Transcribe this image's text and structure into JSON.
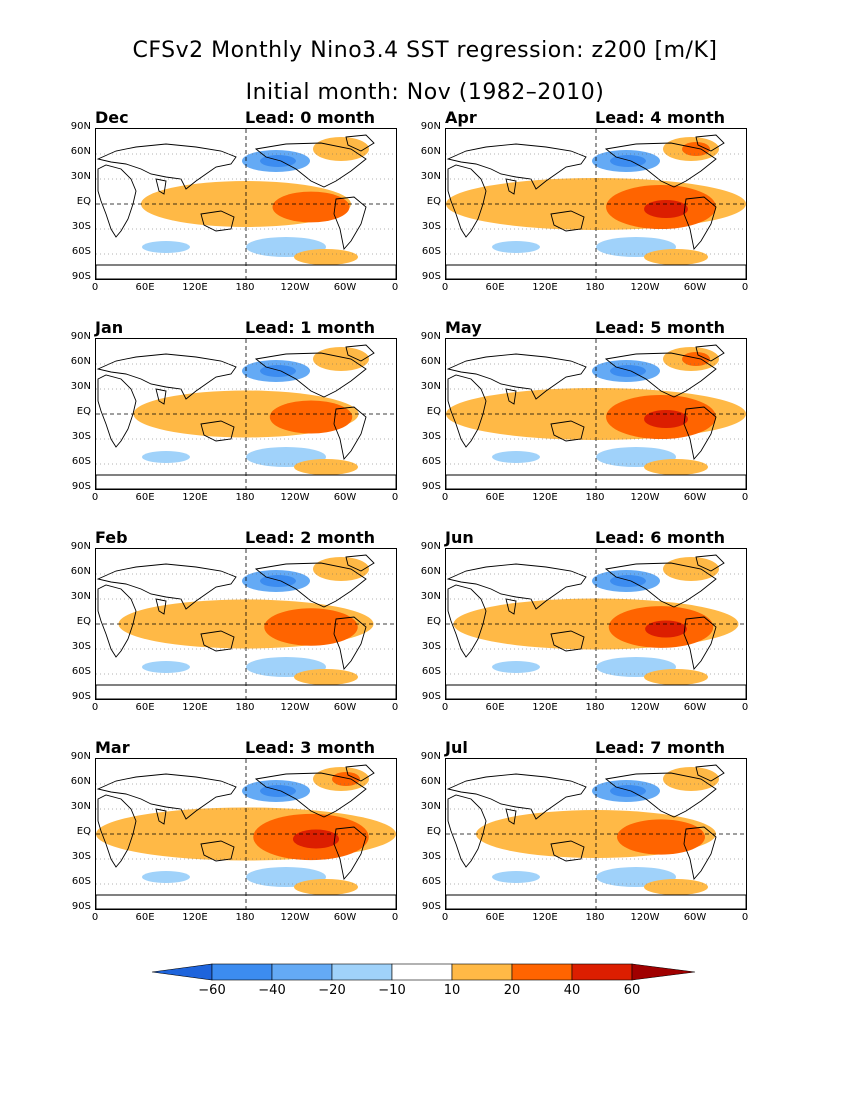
{
  "header": {
    "title": "CFSv2 Monthly Nino3.4 SST regression: z200 [m/K]",
    "subtitle": "Initial month: Nov (1982–2010)"
  },
  "axes": {
    "lat_ticks": [
      "90N",
      "60N",
      "30N",
      "EQ",
      "30S",
      "60S",
      "90S"
    ],
    "lon_ticks": [
      "0",
      "60E",
      "120E",
      "180",
      "120W",
      "60W",
      "0"
    ]
  },
  "panels": [
    {
      "month": "Dec",
      "lead": "Lead: 0 month",
      "strength": 0.7
    },
    {
      "month": "Apr",
      "lead": "Lead: 4 month",
      "strength": 1.0
    },
    {
      "month": "Jan",
      "lead": "Lead: 1 month",
      "strength": 0.75
    },
    {
      "month": "May",
      "lead": "Lead: 5 month",
      "strength": 1.0
    },
    {
      "month": "Feb",
      "lead": "Lead: 2 month",
      "strength": 0.85
    },
    {
      "month": "Jun",
      "lead": "Lead: 6 month",
      "strength": 0.95
    },
    {
      "month": "Mar",
      "lead": "Lead: 3 month",
      "strength": 1.05
    },
    {
      "month": "Jul",
      "lead": "Lead: 7 month",
      "strength": 0.8
    }
  ],
  "colorbar": {
    "labels": [
      "−60",
      "−40",
      "−20",
      "−10",
      "10",
      "20",
      "40",
      "60"
    ],
    "colors": [
      "#1e64dc",
      "#3c8cf0",
      "#64aaf5",
      "#a0d2fa",
      "#ffffff",
      "#ffb946",
      "#ff6400",
      "#dc1e00",
      "#a00000"
    ]
  }
}
